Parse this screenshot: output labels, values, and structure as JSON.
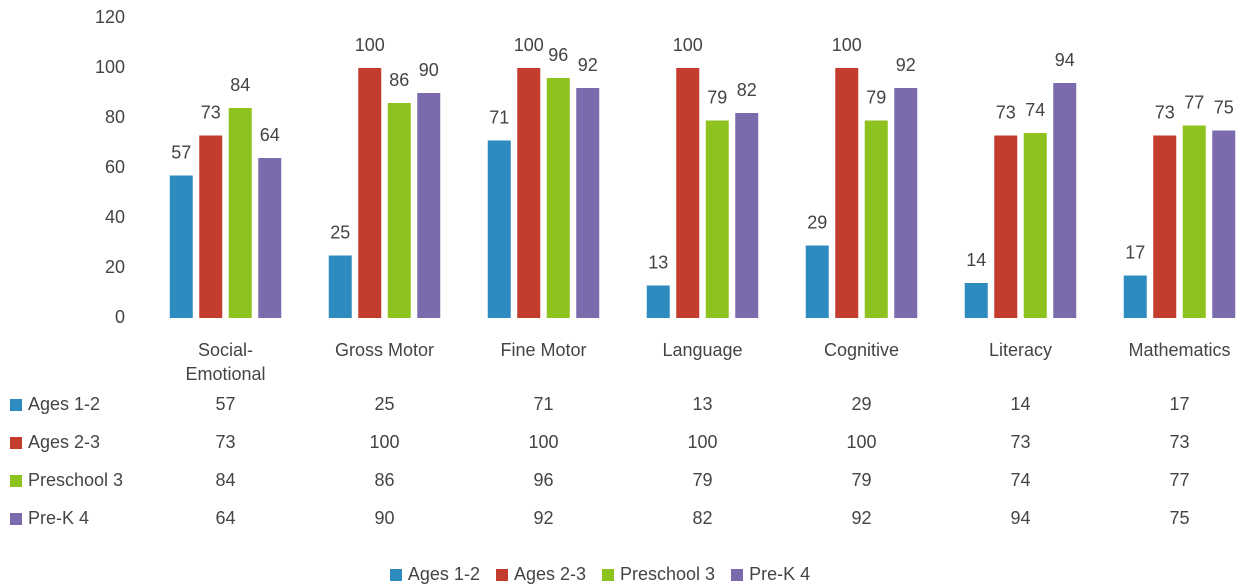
{
  "chart_data": {
    "type": "bar",
    "categories": [
      "Social-Emotional",
      "Gross Motor",
      "Fine Motor",
      "Language",
      "Cognitive",
      "Literacy",
      "Mathematics"
    ],
    "series": [
      {
        "name": "Ages 1-2",
        "color": "#2e8bc0",
        "values": [
          57,
          25,
          71,
          13,
          29,
          14,
          17
        ]
      },
      {
        "name": "Ages 2-3",
        "color": "#c33c2e",
        "values": [
          73,
          100,
          100,
          100,
          100,
          73,
          73
        ]
      },
      {
        "name": "Preschool 3",
        "color": "#8dc21f",
        "values": [
          84,
          86,
          96,
          79,
          79,
          74,
          77
        ]
      },
      {
        "name": "Pre-K 4",
        "color": "#7b6bad",
        "values": [
          64,
          90,
          92,
          82,
          92,
          94,
          75
        ]
      }
    ],
    "ylim": [
      0,
      120
    ],
    "yticks": [
      0,
      20,
      40,
      60,
      80,
      100,
      120
    ],
    "grid": false,
    "legend": "bottom"
  }
}
